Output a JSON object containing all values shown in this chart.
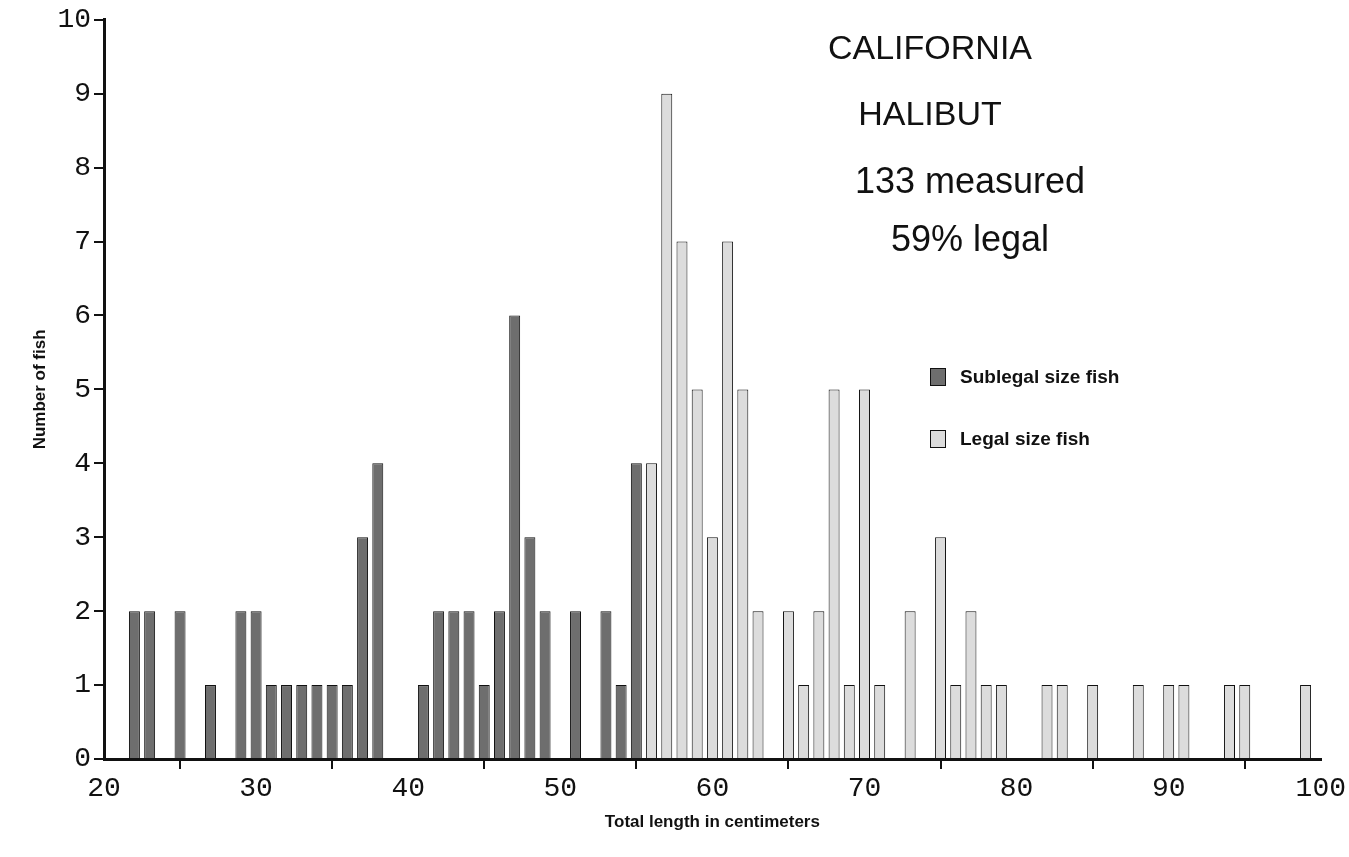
{
  "chart_data": {
    "type": "bar",
    "title": "CALIFORNIA HALIBUT",
    "xlabel": "Total length in centimeters",
    "ylabel": "Number of fish",
    "annotations": [
      "133 measured",
      "59% legal"
    ],
    "xlim": [
      20,
      100
    ],
    "xticks": [
      20,
      30,
      40,
      50,
      60,
      70,
      80,
      90,
      100
    ],
    "ylim": [
      0,
      10
    ],
    "yticks": [
      0,
      1,
      2,
      3,
      4,
      5,
      6,
      7,
      8,
      9,
      10
    ],
    "legend": "right",
    "series": [
      {
        "name": "Sublegal size fish",
        "color": "#6e6e6e",
        "x": [
          22,
          23,
          25,
          27,
          29,
          30,
          31,
          32,
          33,
          34,
          35,
          36,
          37,
          38,
          41,
          42,
          43,
          44,
          45,
          46,
          47,
          48,
          49,
          51,
          53,
          54,
          55
        ],
        "values": [
          2,
          2,
          2,
          1,
          2,
          2,
          1,
          1,
          1,
          1,
          1,
          1,
          3,
          4,
          1,
          2,
          2,
          2,
          1,
          2,
          6,
          3,
          2,
          2,
          2,
          1,
          4
        ]
      },
      {
        "name": "Legal size fish",
        "color": "#dcdcdc",
        "x": [
          56,
          57,
          58,
          59,
          60,
          61,
          62,
          63,
          65,
          66,
          67,
          68,
          69,
          70,
          71,
          73,
          75,
          76,
          77,
          78,
          79,
          82,
          83,
          85,
          88,
          90,
          91,
          94,
          95,
          99
        ],
        "values": [
          4,
          9,
          7,
          5,
          3,
          7,
          5,
          2,
          2,
          1,
          2,
          5,
          1,
          5,
          1,
          2,
          3,
          1,
          2,
          1,
          1,
          1,
          1,
          1,
          1,
          1,
          1,
          1,
          1,
          1
        ]
      }
    ]
  }
}
